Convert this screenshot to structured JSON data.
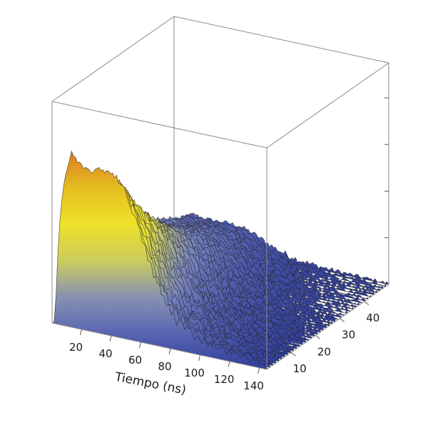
{
  "chart_data": {
    "type": "surface3d",
    "title": "",
    "xlabel": "Tiempo (ns)",
    "ylabel": "",
    "zlabel": "",
    "x_ticks": [
      "20",
      "40",
      "60",
      "80",
      "100",
      "120",
      "140"
    ],
    "y_ticks": [
      "10",
      "20",
      "30",
      "40"
    ],
    "z_ticks_count": 4,
    "xlim": [
      0,
      145
    ],
    "ylim": [
      0,
      50
    ],
    "colormap": [
      "#2f3d9b",
      "#7a86c2",
      "#f2ef2a",
      "#e0b020",
      "#d21a1a"
    ],
    "slice_count": 42,
    "description_features": {
      "peak_time_ns": 12,
      "shoulder_time_ns": 45,
      "decay_to_noise_ns": 110,
      "amplitude_decreases_with_depth": true
    }
  }
}
